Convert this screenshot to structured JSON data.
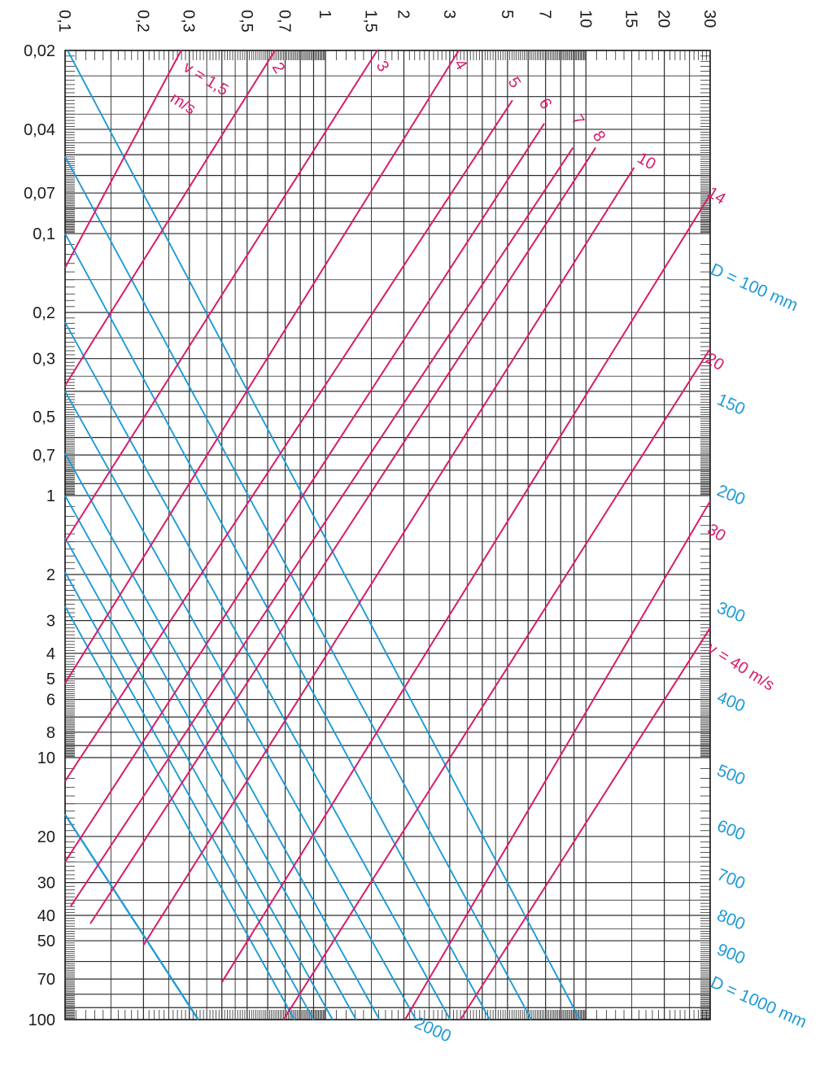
{
  "chart_data": {
    "type": "line",
    "title": "",
    "xlabel": "",
    "ylabel": "",
    "x_scale": "log",
    "y_scale": "log",
    "xlim": [
      0.1,
      30
    ],
    "ylim": [
      0.02,
      100
    ],
    "y_inverted": true,
    "grid": true,
    "x_tick_labels": [
      {
        "value": 0.1,
        "label": "0,1"
      },
      {
        "value": 0.2,
        "label": "0,2"
      },
      {
        "value": 0.3,
        "label": "0,3"
      },
      {
        "value": 0.5,
        "label": "0,5"
      },
      {
        "value": 0.7,
        "label": "0,7"
      },
      {
        "value": 1,
        "label": "1"
      },
      {
        "value": 1.5,
        "label": "1,5"
      },
      {
        "value": 2,
        "label": "2"
      },
      {
        "value": 3,
        "label": "3"
      },
      {
        "value": 5,
        "label": "5"
      },
      {
        "value": 7,
        "label": "7"
      },
      {
        "value": 10,
        "label": "10"
      },
      {
        "value": 15,
        "label": "15"
      },
      {
        "value": 20,
        "label": "20"
      },
      {
        "value": 30,
        "label": "30"
      }
    ],
    "y_tick_labels": [
      {
        "value": 0.02,
        "label": "0,02"
      },
      {
        "value": 0.04,
        "label": "0,04"
      },
      {
        "value": 0.07,
        "label": "0,07"
      },
      {
        "value": 0.1,
        "label": "0,1"
      },
      {
        "value": 0.2,
        "label": "0,2"
      },
      {
        "value": 0.3,
        "label": "0,3"
      },
      {
        "value": 0.5,
        "label": "0,5"
      },
      {
        "value": 0.7,
        "label": "0,7"
      },
      {
        "value": 1,
        "label": "1"
      },
      {
        "value": 2,
        "label": "2"
      },
      {
        "value": 3,
        "label": "3"
      },
      {
        "value": 4,
        "label": "4"
      },
      {
        "value": 5,
        "label": "5"
      },
      {
        "value": 6,
        "label": "6"
      },
      {
        "value": 8,
        "label": "8"
      },
      {
        "value": 10,
        "label": "10"
      },
      {
        "value": 20,
        "label": "20"
      },
      {
        "value": 30,
        "label": "30"
      },
      {
        "value": 40,
        "label": "40"
      },
      {
        "value": 50,
        "label": "50"
      },
      {
        "value": 70,
        "label": "70"
      },
      {
        "value": 100,
        "label": "100"
      }
    ],
    "diameter_series": {
      "color": "#1e9bd7",
      "lines": [
        {
          "name": "D = 100 mm",
          "label": "D = 100 mm",
          "y_at_xmin": 0.0192,
          "slope": -1.88
        },
        {
          "name": "150",
          "label": "150",
          "y_at_xmin": 0.0508,
          "slope": -1.84
        },
        {
          "name": "200",
          "label": "200",
          "y_at_xmin": 0.1,
          "slope": -1.84
        },
        {
          "name": "300",
          "label": "300",
          "y_at_xmin": 0.218,
          "slope": -1.8
        },
        {
          "name": "400",
          "label": "400",
          "y_at_xmin": 0.4,
          "slope": -1.78
        },
        {
          "name": "500",
          "label": "500",
          "y_at_xmin": 0.69,
          "slope": -1.79
        },
        {
          "name": "600",
          "label": "600",
          "y_at_xmin": 1.0,
          "slope": -1.79
        },
        {
          "name": "700",
          "label": "700",
          "y_at_xmin": 1.45,
          "slope": -1.79
        },
        {
          "name": "800",
          "label": "800",
          "y_at_xmin": 1.96,
          "slope": -1.79
        },
        {
          "name": "900",
          "label": "900",
          "y_at_xmin": 2.65,
          "slope": -1.79
        },
        {
          "name": "D = 1000 mm",
          "label": "D = 1000 mm",
          "y_at_xmin": 16.5,
          "slope": -1.53
        },
        {
          "name": "2000",
          "label": "2000",
          "y_at_xmin": 16.5,
          "slope": -1.53
        }
      ]
    },
    "velocity_series": {
      "color": "#d81b6b",
      "lines": [
        {
          "name": "v = 1,5 m/s",
          "label_top": "v = 1,5",
          "label_bottom": "m/s",
          "start": [
            0.1,
            0.135
          ],
          "end": [
            0.279,
            0.02
          ]
        },
        {
          "name": "2",
          "label": "2",
          "start": [
            0.1,
            0.38
          ],
          "end": [
            0.64,
            0.02
          ]
        },
        {
          "name": "3",
          "label": "3",
          "start": [
            0.1,
            1.5
          ],
          "end": [
            1.58,
            0.02
          ]
        },
        {
          "name": "4",
          "label": "4",
          "start": [
            0.1,
            5.2
          ],
          "end": [
            3.25,
            0.02
          ]
        },
        {
          "name": "5",
          "label": "5",
          "start": [
            0.1,
            12.3
          ],
          "end": [
            5.22,
            0.031
          ]
        },
        {
          "name": "6",
          "label": "6",
          "start": [
            0.1,
            25.0
          ],
          "end": [
            6.92,
            0.038
          ]
        },
        {
          "name": "7",
          "label": "7",
          "start": [
            0.105,
            37.0
          ],
          "end": [
            8.92,
            0.047
          ]
        },
        {
          "name": "8",
          "label": "8",
          "start": [
            0.125,
            43.0
          ],
          "end": [
            10.9,
            0.047
          ]
        },
        {
          "name": "10",
          "label": "10",
          "start": [
            0.2,
            52.0
          ],
          "end": [
            15.3,
            0.056
          ]
        },
        {
          "name": "14",
          "label": "14",
          "start": [
            0.4,
            72.0
          ],
          "end": [
            30,
            0.071
          ]
        },
        {
          "name": "20",
          "label": "20",
          "start": [
            0.69,
            100
          ],
          "end": [
            30,
            0.275
          ]
        },
        {
          "name": "30",
          "label": "30",
          "start": [
            2.02,
            100
          ],
          "end": [
            30,
            1.05
          ]
        },
        {
          "name": "v = 40 m/s",
          "label": "v = 40 m/s",
          "start": [
            3.3,
            100
          ],
          "end": [
            30,
            3.2
          ]
        }
      ]
    }
  }
}
